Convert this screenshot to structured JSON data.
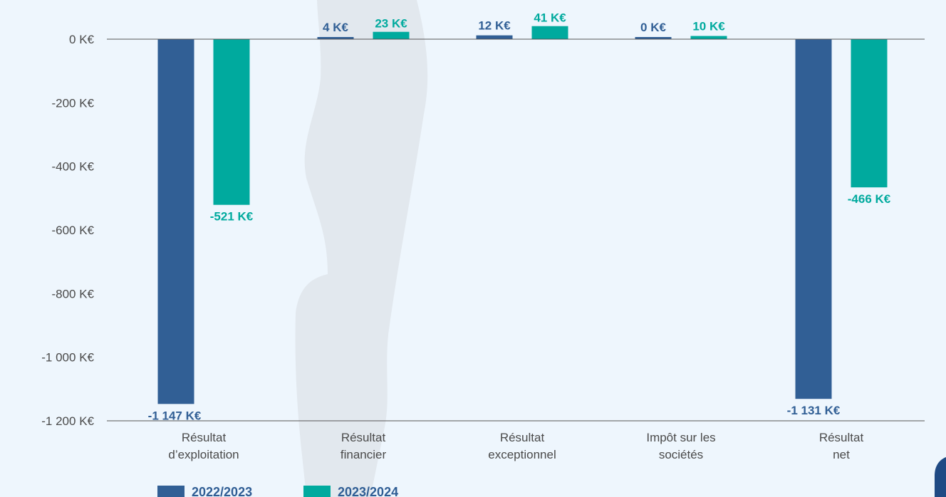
{
  "colors": {
    "series_2022": "#315f95",
    "series_2023": "#00aa9e",
    "axis": "#555555",
    "text": "#4a4a4a",
    "watermark": "#e2e8ee",
    "corner_logo": "#1f4a84"
  },
  "chart_data": {
    "type": "bar",
    "title": "",
    "xlabel": "",
    "ylabel": "",
    "ylim": [
      -1200,
      0
    ],
    "grid": false,
    "legend_position": "bottom-left",
    "y_ticks": [
      {
        "value": 0,
        "label": "0 K€"
      },
      {
        "value": -200,
        "label": "-200 K€"
      },
      {
        "value": -400,
        "label": "-400 K€"
      },
      {
        "value": -600,
        "label": "-600 K€"
      },
      {
        "value": -800,
        "label": "-800 K€"
      },
      {
        "value": -1000,
        "label": "-1 000 K€"
      },
      {
        "value": -1200,
        "label": "-1 200 K€"
      }
    ],
    "categories": [
      [
        "Résultat",
        "d’exploitation"
      ],
      [
        "Résultat",
        "financier"
      ],
      [
        "Résultat",
        "exceptionnel"
      ],
      [
        "Impôt sur les",
        "sociétés"
      ],
      [
        "Résultat",
        "net"
      ]
    ],
    "series": [
      {
        "name": "2022/2023",
        "values": [
          -1147,
          4,
          12,
          0,
          -1131
        ],
        "labels": [
          "-1 147 K€",
          "4 K€",
          "12 K€",
          "0 K€",
          "-1 131 K€"
        ]
      },
      {
        "name": "2023/2024",
        "values": [
          -521,
          23,
          41,
          10,
          -466
        ],
        "labels": [
          "-521 K€",
          "23 K€",
          "41 K€",
          "10 K€",
          "-466 K€"
        ]
      }
    ]
  }
}
